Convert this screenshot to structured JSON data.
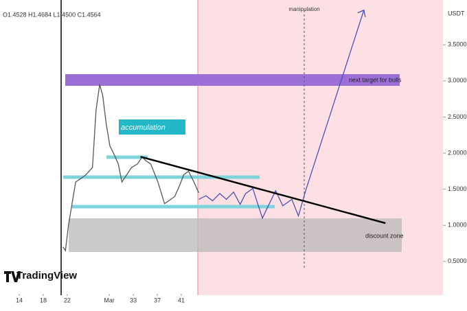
{
  "chart_data": {
    "type": "line",
    "legend_text": "O1.4528 H1.4684 L1.4500 C1.4564",
    "axis_unit": "USDT",
    "brand": "TradingView",
    "annotations": {
      "accumulation": "accumulation",
      "target": "next target for bulls",
      "discount": "discount zone",
      "manipulation": "manipulation"
    },
    "xlim": [
      10.8,
      84
    ],
    "xticks": [
      14,
      18,
      22,
      {
        "value": 29,
        "label": "Mar"
      },
      33,
      37,
      41
    ],
    "ylim": [
      0.08,
      4.12
    ],
    "yticks": [
      {
        "value": 0.5,
        "label": "0.5000"
      },
      {
        "value": 1,
        "label": "1.0000"
      },
      {
        "value": 1.5,
        "label": "1.5000"
      },
      {
        "value": 2,
        "label": "2.0000"
      },
      {
        "value": 2.5,
        "label": "2.5000"
      },
      {
        "value": 3,
        "label": "3.0000"
      },
      {
        "value": 3.5,
        "label": "3.5000"
      }
    ],
    "series": [
      {
        "color": "#555555",
        "x": [
          21.3,
          21.7,
          22.2,
          22.8,
          23.4,
          24.3,
          25.1,
          26.2,
          26.8,
          27.4,
          27.9,
          28.5,
          29.1,
          29.7,
          30.5,
          31.1,
          31.9,
          32.7,
          33.7,
          34.5,
          35.0,
          35.9,
          37.1,
          38.2,
          39.1,
          39.9,
          40.7,
          41.4,
          42.2,
          43.1,
          43.9
        ],
        "values": [
          0.7,
          0.65,
          1.0,
          1.3,
          1.6,
          1.65,
          1.7,
          1.8,
          2.6,
          2.95,
          2.8,
          2.4,
          2.1,
          2.0,
          1.85,
          1.6,
          1.7,
          1.8,
          1.85,
          1.95,
          1.9,
          1.85,
          1.6,
          1.3,
          1.35,
          1.4,
          1.55,
          1.7,
          1.75,
          1.6,
          1.45
        ]
      },
      {
        "color": "#4a4fb8",
        "x": [
          43.9,
          45.1,
          46.2,
          47.4,
          48.5,
          49.7,
          50.8,
          51.7,
          52.9,
          54.5,
          56.7,
          57.9,
          59.4,
          60.5,
          61.7,
          71.4
        ],
        "values": [
          1.36,
          1.41,
          1.34,
          1.44,
          1.36,
          1.46,
          1.29,
          1.44,
          1.51,
          1.1,
          1.48,
          1.27,
          1.36,
          1.13,
          1.48,
          3.98
        ]
      },
      {
        "color": "#000000",
        "x": [
          34.2,
          75.0
        ],
        "values": [
          1.95,
          1.03
        ]
      }
    ]
  }
}
